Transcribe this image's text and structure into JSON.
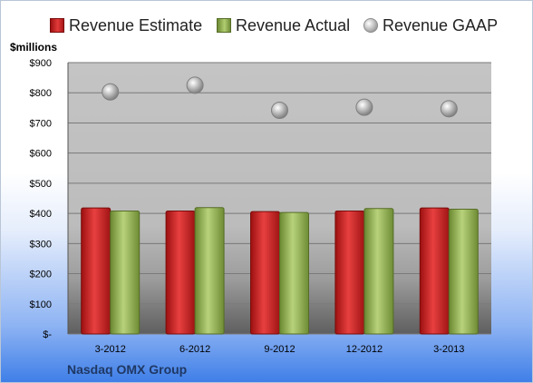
{
  "chart_data": {
    "type": "bar",
    "categories": [
      "3-2012",
      "6-2012",
      "9-2012",
      "12-2012",
      "3-2013"
    ],
    "series": [
      {
        "name": "Revenue Estimate",
        "type": "bar",
        "values": [
          418,
          408,
          406,
          408,
          418
        ],
        "color": "#c81e1e"
      },
      {
        "name": "Revenue Actual",
        "type": "bar",
        "values": [
          408,
          419,
          403,
          416,
          414
        ],
        "color": "#8fb048"
      },
      {
        "name": "Revenue GAAP",
        "type": "scatter",
        "values": [
          803,
          825,
          742,
          752,
          747
        ],
        "color": "#a6a6a6"
      }
    ],
    "ylabel": "$millions",
    "ylim": [
      0,
      900
    ],
    "yticks": [
      0,
      100,
      200,
      300,
      400,
      500,
      600,
      700,
      800,
      900
    ],
    "ytick_labels": [
      "$-",
      "$100",
      "$200",
      "$300",
      "$400",
      "$500",
      "$600",
      "$700",
      "$800",
      "$900"
    ],
    "grid": true,
    "legend_position": "top"
  },
  "legend": {
    "estimate": "Revenue Estimate",
    "actual": "Revenue Actual",
    "gaap": "Revenue GAAP"
  },
  "footer": {
    "company": "Nasdaq OMX Group"
  }
}
